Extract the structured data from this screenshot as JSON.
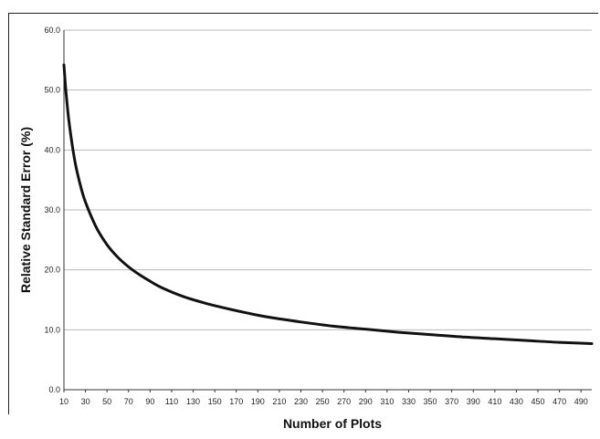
{
  "chart_data": {
    "type": "line",
    "title": "",
    "xlabel": "Number of Plots",
    "ylabel": "Relative Standard Error (%)",
    "xlim": [
      10,
      500
    ],
    "ylim": [
      0,
      60
    ],
    "grid": true,
    "x_ticks": [
      "10",
      "30",
      "50",
      "70",
      "90",
      "110",
      "130",
      "150",
      "170",
      "190",
      "210",
      "230",
      "250",
      "270",
      "290",
      "310",
      "330",
      "350",
      "370",
      "390",
      "410",
      "430",
      "450",
      "470",
      "490"
    ],
    "y_ticks": [
      "0.0",
      "10.0",
      "20.0",
      "30.0",
      "40.0",
      "50.0",
      "60.0"
    ],
    "series": [
      {
        "color": "#111111",
        "x": [
          10,
          12,
          15,
          20,
          25,
          30,
          40,
          50,
          60,
          70,
          80,
          90,
          100,
          120,
          140,
          160,
          180,
          200,
          230,
          260,
          290,
          320,
          350,
          380,
          410,
          440,
          470,
          500
        ],
        "y": [
          54.2,
          49.5,
          44.3,
          38.3,
          34.3,
          31.3,
          27.1,
          24.2,
          22.1,
          20.5,
          19.2,
          18.1,
          17.1,
          15.6,
          14.5,
          13.6,
          12.8,
          12.1,
          11.3,
          10.6,
          10.1,
          9.6,
          9.2,
          8.8,
          8.5,
          8.2,
          7.9,
          7.7
        ]
      }
    ]
  }
}
